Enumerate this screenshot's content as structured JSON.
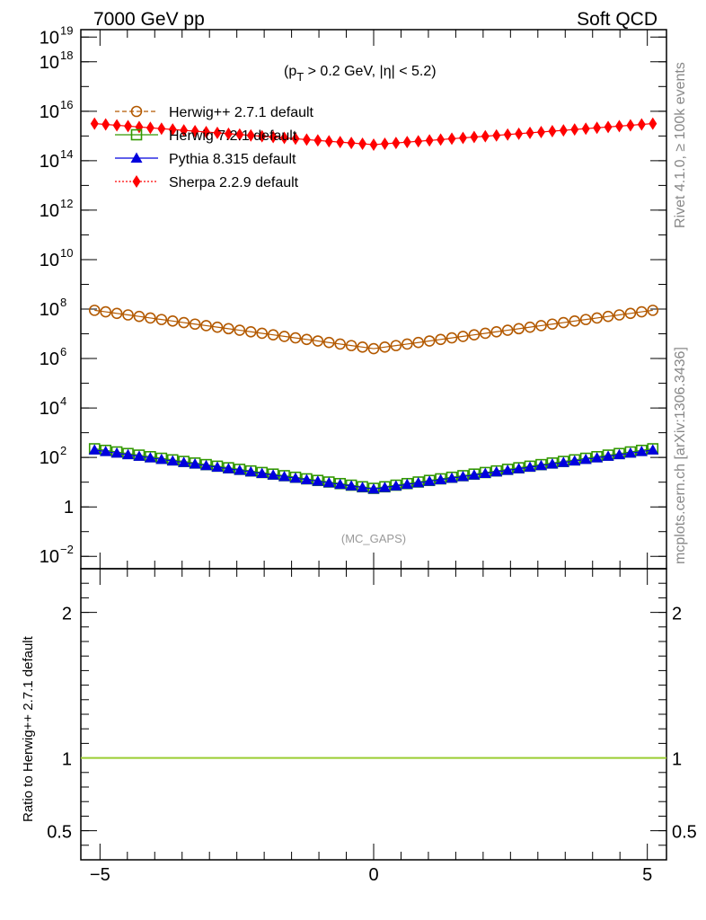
{
  "chart_data": {
    "type": "scatter",
    "header_left": "7000 GeV pp",
    "header_right": "Soft QCD",
    "cut_label": {
      "open": "(p",
      "sub": "T",
      "rest": " > 0.2 GeV, |η| < 5.2)"
    },
    "watermark": "(MC_GAPS)",
    "side_labels": {
      "rivet": "Rivet 4.1.0, ≥ 100k events",
      "mcplots": "mcplots.cern.ch [arXiv:1306.3436]"
    },
    "ratio_ylabel": "Ratio to Herwig++ 2.7.1 default",
    "colors": {
      "herwigpp": "#b35900",
      "herwig7": "#339900",
      "pythia": "#0000dd",
      "sherpa": "#ff0000",
      "ratio_line": "#9acd32"
    },
    "x_range": [
      -5.35,
      5.35
    ],
    "main_ylim_log10": [
      -2.5,
      19.3
    ],
    "ratio_ylim": [
      0.3,
      2.3
    ],
    "x_ticks": [
      {
        "value": -5,
        "label": "−5"
      },
      {
        "value": 0,
        "label": "0"
      },
      {
        "value": 5,
        "label": "5"
      }
    ],
    "y_major_ticks": [
      {
        "exp": -2,
        "base": "10",
        "sup": "−2"
      },
      {
        "exp": 0,
        "base": "1",
        "sup": ""
      },
      {
        "exp": 2,
        "base": "10",
        "sup": "2"
      },
      {
        "exp": 4,
        "base": "10",
        "sup": "4"
      },
      {
        "exp": 6,
        "base": "10",
        "sup": "6"
      },
      {
        "exp": 8,
        "base": "10",
        "sup": "8"
      },
      {
        "exp": 10,
        "base": "10",
        "sup": "10"
      },
      {
        "exp": 12,
        "base": "10",
        "sup": "12"
      },
      {
        "exp": 14,
        "base": "10",
        "sup": "14"
      },
      {
        "exp": 16,
        "base": "10",
        "sup": "16"
      },
      {
        "exp": 18,
        "base": "10",
        "sup": "18"
      },
      {
        "exp": 19,
        "base": "10",
        "sup": "19"
      }
    ],
    "ratio_ticks": [
      {
        "value": 0.5,
        "label": "0.5"
      },
      {
        "value": 1,
        "label": "1"
      },
      {
        "value": 2,
        "label": "2"
      }
    ],
    "x_min": -5.1,
    "x_max": 5.1,
    "n_points": 51,
    "series": [
      {
        "name": "Herwig++ 2.7.1 default",
        "key": "herwigpp",
        "marker": "circle-open",
        "line": "dashed",
        "log10_center": 6.4,
        "log10_edge": 7.95
      },
      {
        "name": "Herwig 7.2.1 default",
        "key": "herwig7",
        "marker": "square-open",
        "line": "solid",
        "log10_center": 0.75,
        "log10_edge": 2.35
      },
      {
        "name": "Pythia 8.315 default",
        "key": "pythia",
        "marker": "triangle",
        "line": "solid",
        "log10_center": 0.72,
        "log10_edge": 2.3
      },
      {
        "name": "Sherpa 2.2.9 default",
        "key": "sherpa",
        "marker": "diamond",
        "line": "dotted",
        "log10_center": 14.65,
        "log10_edge": 15.5
      }
    ]
  }
}
